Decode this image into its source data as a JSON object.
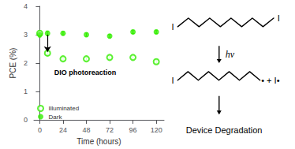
{
  "chart_data": {
    "type": "scatter",
    "xlabel": "Time (hours)",
    "ylabel": "PCE (%)",
    "series": [
      {
        "name": "Illuminated",
        "color": "#33ee00",
        "marker": "open",
        "x": [
          0,
          8,
          24,
          48,
          72,
          96,
          120
        ],
        "values": [
          3.05,
          2.35,
          2.15,
          2.15,
          2.2,
          2.2,
          2.05
        ],
        "errors": [
          0.08,
          0.08,
          0.06,
          0.06,
          0.06,
          0.06,
          0.06
        ]
      },
      {
        "name": "Dark",
        "color": "#33ee00",
        "marker": "filled",
        "x": [
          0,
          8,
          24,
          48,
          72,
          96,
          120
        ],
        "values": [
          3.0,
          3.05,
          3.05,
          3.0,
          2.95,
          3.1,
          3.1
        ],
        "errors": [
          0.08,
          0.08,
          0.06,
          0.06,
          0.06,
          0.06,
          0.06
        ]
      }
    ],
    "xlim": [
      -6,
      128
    ],
    "xticks": [
      0,
      24,
      48,
      72,
      96,
      120
    ],
    "ylim": [
      0,
      4
    ],
    "yticks": [
      0,
      1,
      2,
      3,
      4
    ],
    "grid": false,
    "legend": "lower left",
    "annotations": [
      {
        "text": "DIO photoreaction",
        "x": 15,
        "y": 1.68,
        "arrow": {
          "x": 8,
          "y_from": 3.0,
          "y_to": 2.4
        }
      }
    ],
    "scheme": {
      "reactant": [
        "I",
        "I"
      ],
      "condition": "hν",
      "product": [
        "I",
        "• + I•"
      ],
      "outcome": "Device Degradation"
    }
  }
}
